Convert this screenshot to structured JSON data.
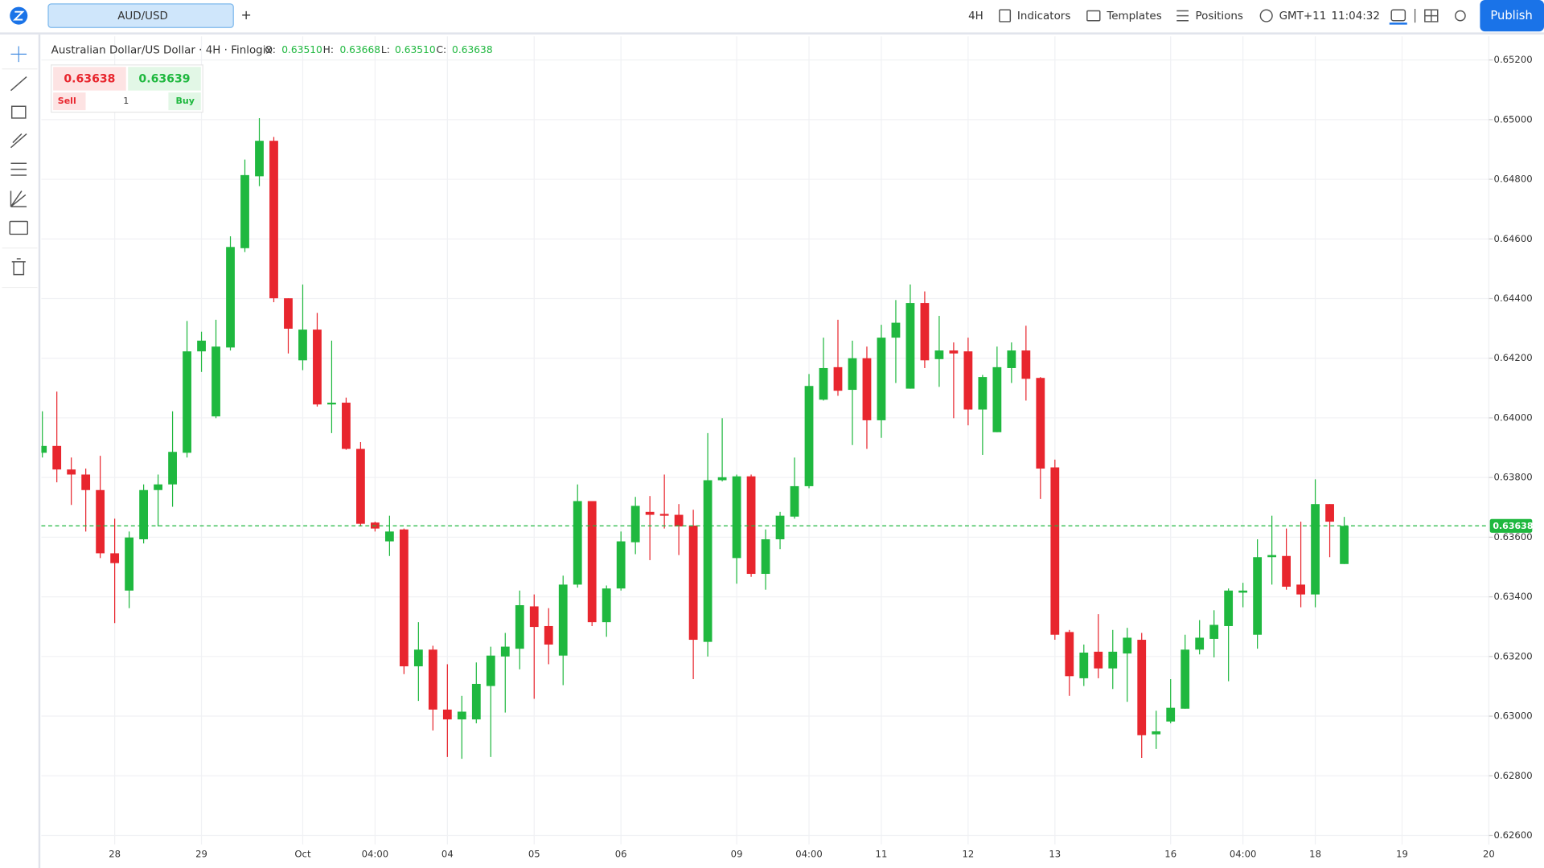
{
  "toolbar": {
    "symbol": "AUD/USD",
    "add": "+",
    "interval": "4H",
    "indicators": "Indicators",
    "templates": "Templates",
    "positions": "Positions",
    "timezone": "GMT+11",
    "clock": "11:04:32",
    "publish": "Publish"
  },
  "trade_panel": {
    "sell_price": "0.63638",
    "buy_price": "0.63639",
    "sell": "Sell",
    "quantity": "1",
    "buy": "Buy"
  },
  "chart_data": {
    "type": "candlestick",
    "title": "Australian Dollar/US Dollar · 4H · Finlogix",
    "ohlc_legend": [
      {
        "label": "O:",
        "value": "0.63510"
      },
      {
        "label": "H:",
        "value": "0.63668"
      },
      {
        "label": "L:",
        "value": "0.63510"
      },
      {
        "label": "C:",
        "value": "0.63638"
      }
    ],
    "up_color": "#1fb83f",
    "down_color": "#e8262e",
    "grid": true,
    "xlim": [
      -0.07,
      100
    ],
    "ylim": [
      0.6257,
      0.65279
    ],
    "xticks": [
      {
        "value": 5,
        "label": "28"
      },
      {
        "value": 11,
        "label": "29"
      },
      {
        "value": 18,
        "label": "Oct"
      },
      {
        "value": 23,
        "label": "04:00"
      },
      {
        "value": 28,
        "label": "04"
      },
      {
        "value": 34,
        "label": "05"
      },
      {
        "value": 40,
        "label": "06"
      },
      {
        "value": 48,
        "label": "09"
      },
      {
        "value": 53,
        "label": "04:00"
      },
      {
        "value": 58,
        "label": "11"
      },
      {
        "value": 64,
        "label": "12"
      },
      {
        "value": 70,
        "label": "13"
      },
      {
        "value": 78,
        "label": "16"
      },
      {
        "value": 83,
        "label": "04:00"
      },
      {
        "value": 88,
        "label": "18"
      },
      {
        "value": 94,
        "label": "19"
      },
      {
        "value": 100,
        "label": "20"
      }
    ],
    "yticks": [
      {
        "value": 0.652,
        "label": "0.65200"
      },
      {
        "value": 0.65,
        "label": "0.65000"
      },
      {
        "value": 0.648,
        "label": "0.64800"
      },
      {
        "value": 0.646,
        "label": "0.64600"
      },
      {
        "value": 0.644,
        "label": "0.64400"
      },
      {
        "value": 0.642,
        "label": "0.64200"
      },
      {
        "value": 0.64,
        "label": "0.64000"
      },
      {
        "value": 0.638,
        "label": "0.63800"
      },
      {
        "value": 0.636,
        "label": "0.63600"
      },
      {
        "value": 0.634,
        "label": "0.63400"
      },
      {
        "value": 0.632,
        "label": "0.63200"
      },
      {
        "value": 0.63,
        "label": "0.63000"
      },
      {
        "value": 0.628,
        "label": "0.62800"
      },
      {
        "value": 0.626,
        "label": "0.62600"
      }
    ],
    "last_price": {
      "value": 0.63638,
      "label": "0.63638"
    },
    "open": [
      0.63883,
      0.63906,
      0.63827,
      0.6381,
      0.63758,
      0.63546,
      0.63421,
      0.63593,
      0.63758,
      0.63777,
      0.63883,
      0.64223,
      0.64005,
      0.64236,
      0.64569,
      0.6481,
      0.64929,
      0.64401,
      0.64193,
      0.64296,
      0.64045,
      0.64051,
      0.63896,
      0.63649,
      0.63586,
      0.63626,
      0.63167,
      0.63223,
      0.63022,
      0.62989,
      0.62989,
      0.63101,
      0.632,
      0.63226,
      0.63368,
      0.63302,
      0.63203,
      0.63441,
      0.63721,
      0.63315,
      0.63428,
      0.63583,
      0.63685,
      0.63678,
      0.63675,
      0.63639,
      0.63249,
      0.63791,
      0.6353,
      0.63804,
      0.63477,
      0.63593,
      0.63669,
      0.63771,
      0.64061,
      0.6417,
      0.64094,
      0.642,
      0.63992,
      0.64269,
      0.64098,
      0.64385,
      0.64197,
      0.64226,
      0.64223,
      0.64028,
      0.63952,
      0.64167,
      0.64226,
      0.64134,
      0.63834,
      0.63282,
      0.63127,
      0.63216,
      0.6316,
      0.6321,
      0.63256,
      0.62939,
      0.62982,
      0.63025,
      0.63223,
      0.63259,
      0.63302,
      0.63414,
      0.63273,
      0.63533,
      0.63537,
      0.63441,
      0.63408,
      0.63711,
      0.6351
    ],
    "high": [
      0.64022,
      0.64088,
      0.63867,
      0.6383,
      0.63873,
      0.63662,
      0.63619,
      0.63777,
      0.6381,
      0.64022,
      0.64325,
      0.64289,
      0.64329,
      0.64609,
      0.64866,
      0.65005,
      0.64942,
      0.64401,
      0.64447,
      0.64352,
      0.64259,
      0.64068,
      0.63919,
      0.63652,
      0.63672,
      0.63629,
      0.63315,
      0.63236,
      0.63174,
      0.63068,
      0.6318,
      0.63233,
      0.63279,
      0.63421,
      0.63408,
      0.63362,
      0.63471,
      0.63777,
      0.63721,
      0.63438,
      0.63619,
      0.63735,
      0.63738,
      0.6381,
      0.63711,
      0.63692,
      0.63949,
      0.63999,
      0.6381,
      0.6381,
      0.63626,
      0.63685,
      0.63867,
      0.64147,
      0.64269,
      0.64329,
      0.64259,
      0.64239,
      0.64312,
      0.64395,
      0.64447,
      0.64424,
      0.64342,
      0.64253,
      0.64269,
      0.64144,
      0.64239,
      0.64253,
      0.64309,
      0.64137,
      0.6386,
      0.63289,
      0.6324,
      0.63342,
      0.63289,
      0.63296,
      0.63279,
      0.63018,
      0.63124,
      0.63273,
      0.63322,
      0.63355,
      0.63428,
      0.63447,
      0.63593,
      0.63672,
      0.63629,
      0.63652,
      0.63794,
      0.63711,
      0.63668
    ],
    "low": [
      0.63867,
      0.63784,
      0.63708,
      0.63619,
      0.6353,
      0.63312,
      0.63362,
      0.63579,
      0.63636,
      0.63702,
      0.63867,
      0.64154,
      0.63999,
      0.64226,
      0.64556,
      0.64777,
      0.64388,
      0.64216,
      0.6416,
      0.64038,
      0.63949,
      0.63893,
      0.63636,
      0.63619,
      0.63537,
      0.63141,
      0.63051,
      0.62952,
      0.62863,
      0.62857,
      0.62976,
      0.62863,
      0.63012,
      0.63157,
      0.63058,
      0.63174,
      0.63104,
      0.63431,
      0.63302,
      0.63266,
      0.63421,
      0.63543,
      0.63523,
      0.63629,
      0.6354,
      0.63124,
      0.632,
      0.63787,
      0.63444,
      0.63467,
      0.63424,
      0.6356,
      0.63662,
      0.63764,
      0.64058,
      0.64074,
      0.63909,
      0.63896,
      0.63933,
      0.64117,
      0.64098,
      0.64167,
      0.64104,
      0.63999,
      0.63975,
      0.63876,
      0.63952,
      0.64117,
      0.64058,
      0.63728,
      0.63256,
      0.63068,
      0.63101,
      0.63127,
      0.63091,
      0.63048,
      0.6286,
      0.6289,
      0.62976,
      0.63025,
      0.63207,
      0.63197,
      0.63117,
      0.63365,
      0.63226,
      0.63441,
      0.63424,
      0.63365,
      0.63365,
      0.63533,
      0.6351
    ],
    "close": [
      0.63906,
      0.63827,
      0.6381,
      0.63758,
      0.63546,
      0.63513,
      0.63599,
      0.63758,
      0.63777,
      0.63886,
      0.64223,
      0.64259,
      0.64239,
      0.64573,
      0.64814,
      0.64929,
      0.64401,
      0.64299,
      0.64296,
      0.64045,
      0.64051,
      0.63896,
      0.63645,
      0.63629,
      0.63619,
      0.63167,
      0.63223,
      0.63022,
      0.62989,
      0.63015,
      0.63108,
      0.63203,
      0.63233,
      0.63372,
      0.63299,
      0.6324,
      0.63441,
      0.63721,
      0.63315,
      0.63428,
      0.63586,
      0.63705,
      0.63675,
      0.63672,
      0.63636,
      0.63256,
      0.63791,
      0.63801,
      0.63804,
      0.63477,
      0.63593,
      0.63672,
      0.63771,
      0.64107,
      0.64167,
      0.64091,
      0.642,
      0.63992,
      0.64269,
      0.64319,
      0.64385,
      0.64193,
      0.64226,
      0.64216,
      0.64028,
      0.64137,
      0.6417,
      0.64226,
      0.64131,
      0.6383,
      0.63273,
      0.63134,
      0.63213,
      0.6316,
      0.63216,
      0.63263,
      0.62936,
      0.62949,
      0.63028,
      0.63223,
      0.63263,
      0.63306,
      0.63421,
      0.63421,
      0.63533,
      0.6354,
      0.63434,
      0.63408,
      0.63711,
      0.63652,
      0.63638
    ]
  }
}
